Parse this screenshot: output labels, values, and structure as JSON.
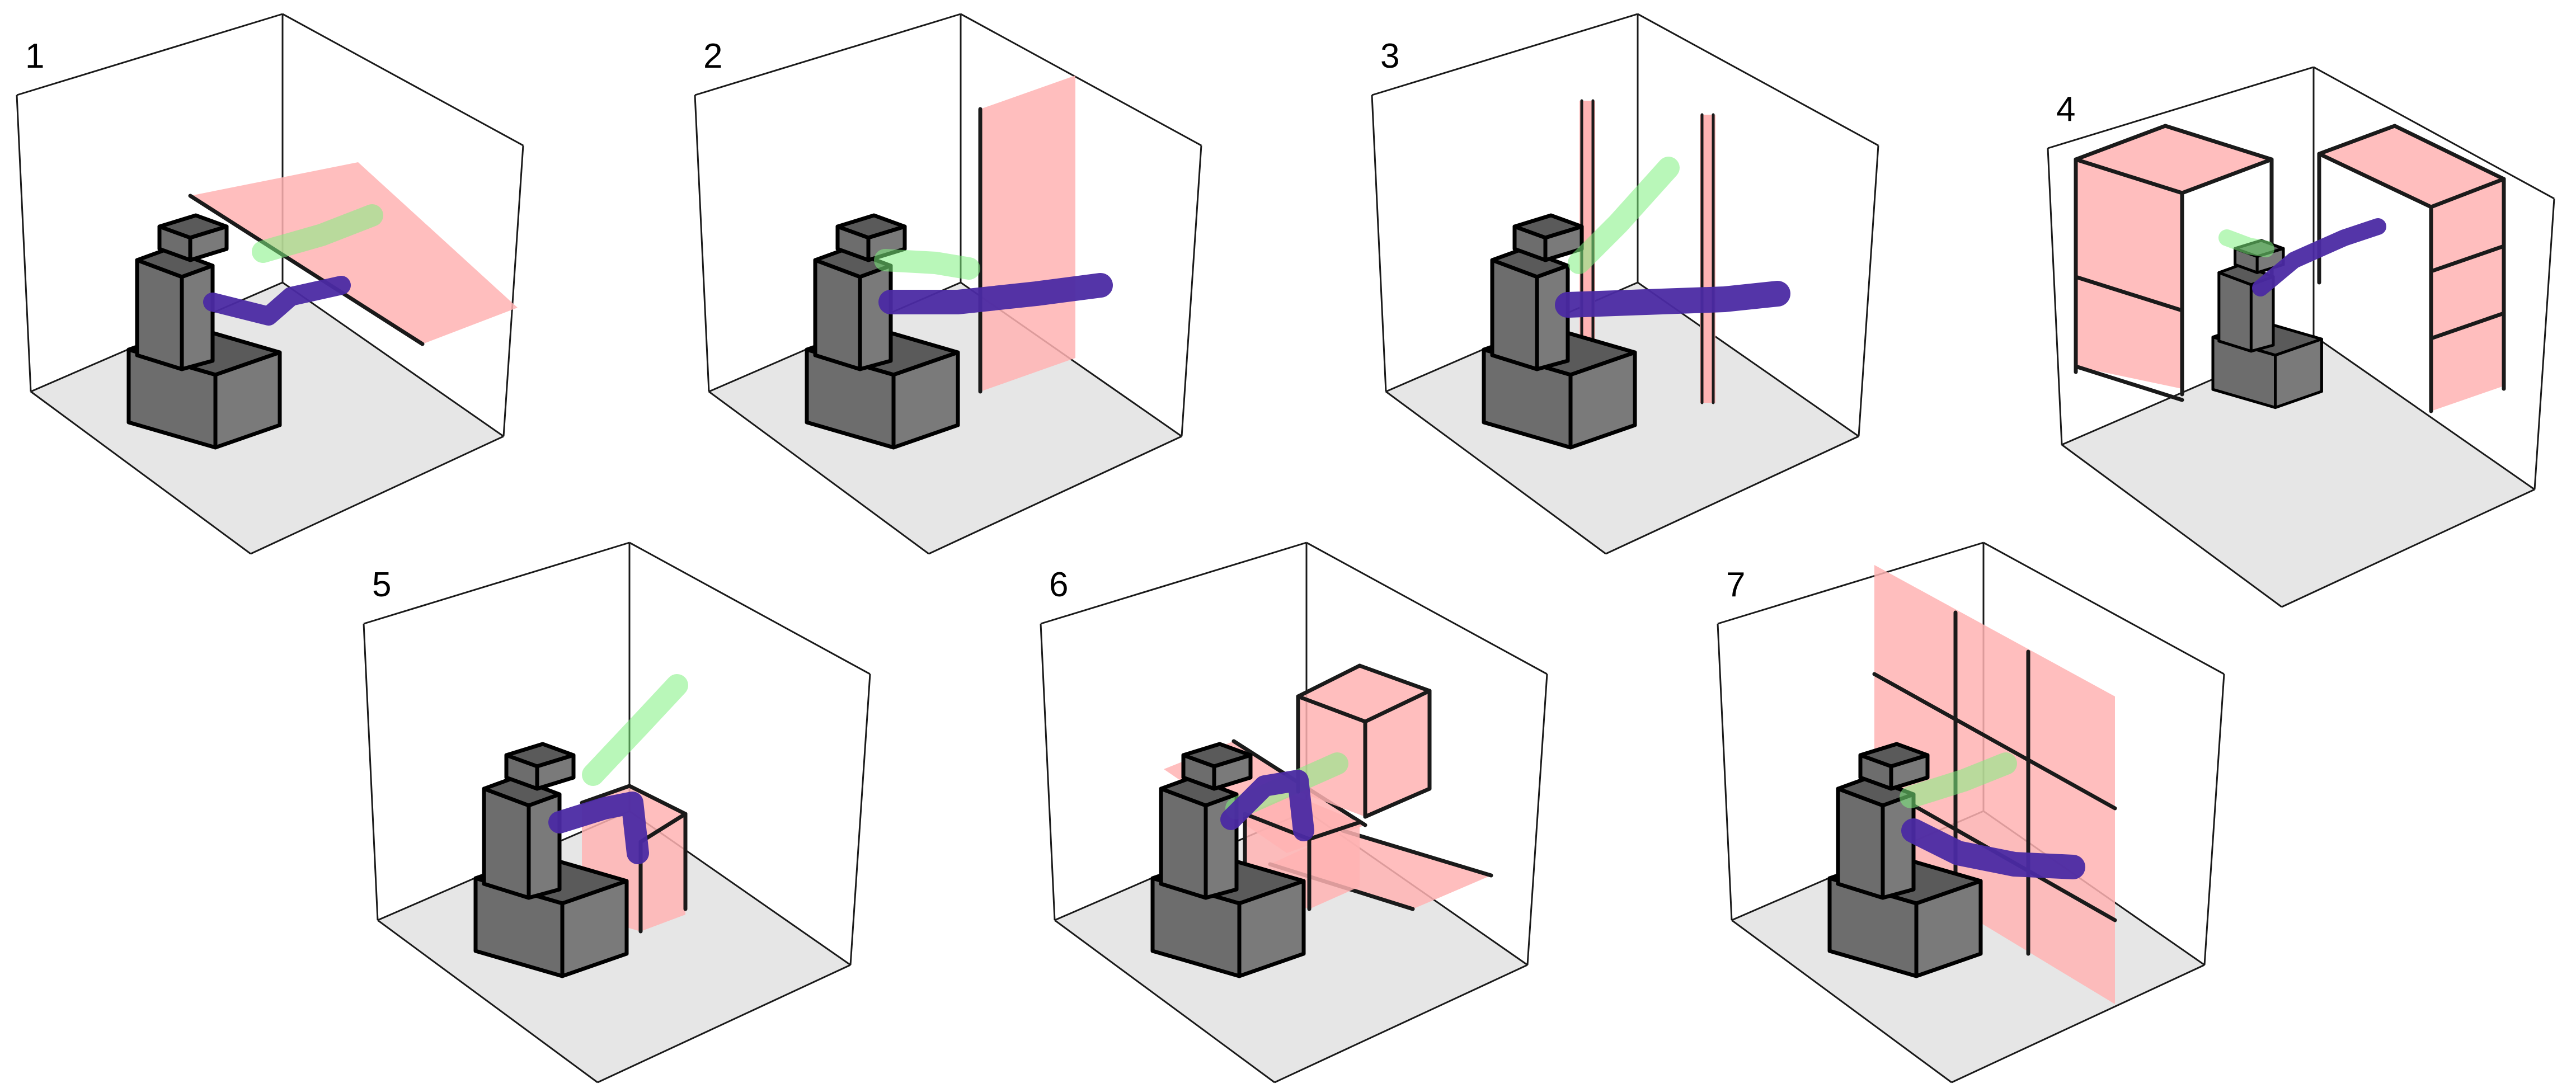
{
  "figure": {
    "panels": [
      {
        "label": "1",
        "obstacle": "horizontal-plane"
      },
      {
        "label": "2",
        "obstacle": "vertical-wall"
      },
      {
        "label": "3",
        "obstacle": "two-vertical-poles"
      },
      {
        "label": "4",
        "obstacle": "two-shelves"
      },
      {
        "label": "5",
        "obstacle": "open-box"
      },
      {
        "label": "6",
        "obstacle": "cube-and-plates"
      },
      {
        "label": "7",
        "obstacle": "grid-window"
      }
    ]
  },
  "colors": {
    "obstacle_fill": "#ffb3b3",
    "obstacle_edge": "#1a1a1a",
    "floor": "#e6e6e6",
    "box_line": "#1a1a1a",
    "robot_front": "#6d6d6d",
    "robot_top": "#5a5a5a",
    "robot_side": "#7a7a7a",
    "arm_final": "#4b2aa3",
    "arm_start": "#7ff07f"
  }
}
